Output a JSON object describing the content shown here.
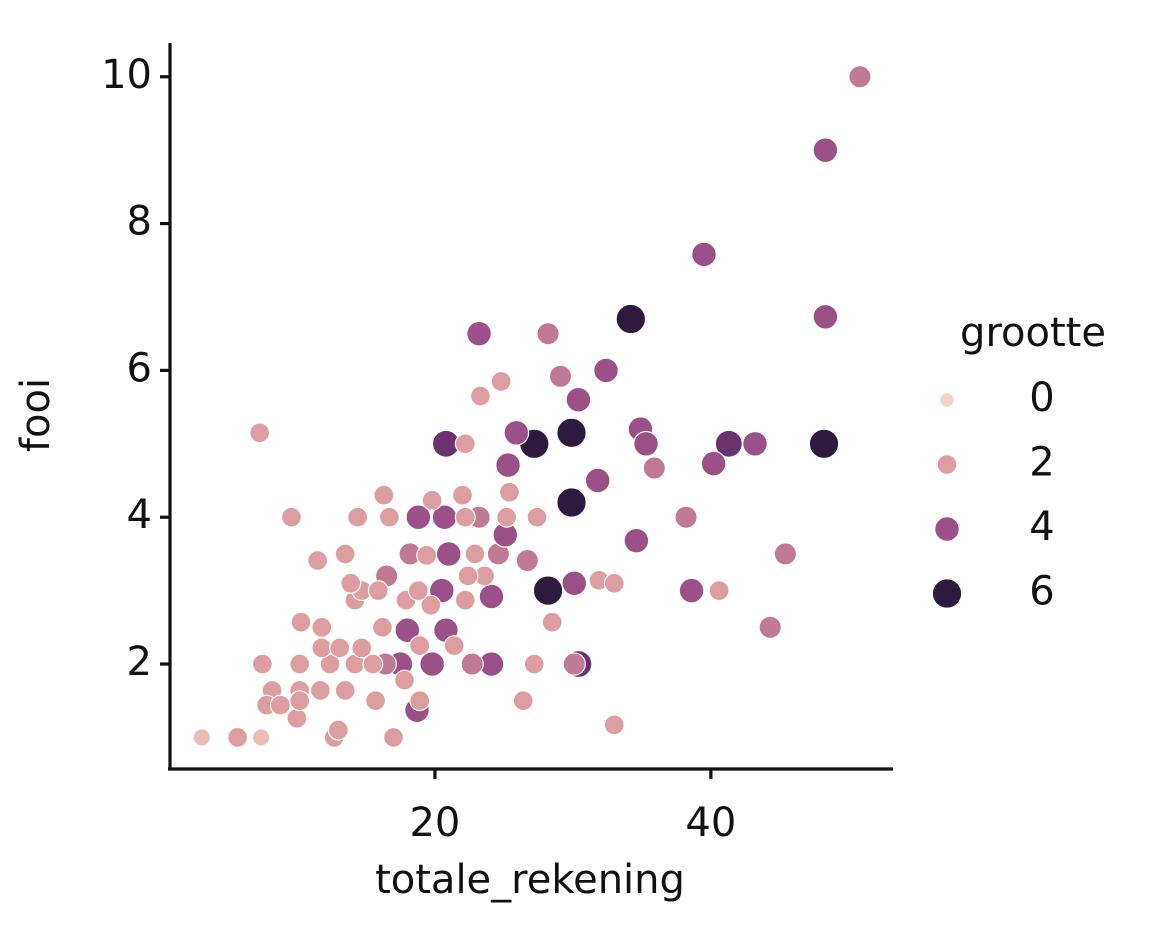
{
  "chart_data": {
    "type": "scatter",
    "x_label": "totale_rekening",
    "y_label": "fooi",
    "xlim": [
      0.8,
      53.2
    ],
    "ylim": [
      0.57,
      10.46
    ],
    "xticks": [
      20,
      40
    ],
    "yticks": [
      2,
      4,
      6,
      8,
      10
    ],
    "grid": false,
    "legend": {
      "title": "grootte",
      "entries": [
        0,
        2,
        4,
        6
      ],
      "position": "right"
    },
    "palette": [
      "#f2d5cb",
      "#ebbdb5",
      "#dc9ea0",
      "#c07a96",
      "#9b5087",
      "#6c3270",
      "#2e1a3f"
    ],
    "x": [
      50.8,
      48.3,
      39.5,
      34.2,
      48.3,
      23.2,
      28.2,
      32.4,
      29.1,
      24.8,
      23.3,
      30.4,
      7.3,
      20.8,
      22.2,
      27.2,
      29.9,
      25.9,
      34.9,
      35.3,
      41.3,
      43.2,
      48.2,
      40.2,
      35.9,
      25.3,
      31.8,
      29.9,
      25.4,
      38.2,
      9.6,
      34.6,
      45.4,
      28.2,
      30.1,
      38.6,
      40.6,
      44.3,
      33.0,
      26.4,
      30.4,
      30.1,
      3.1,
      5.7,
      7.4,
      17.0,
      12.7,
      18.7,
      24.1,
      19.8,
      17.5,
      24.1,
      20.7,
      18.8,
      23.2,
      21.0,
      18.2,
      24.6,
      20.5,
      25.1,
      26.7,
      20.8,
      18.0,
      16.5,
      16.4,
      22.7,
      27.2,
      10.3,
      11.8,
      14.2,
      13.5,
      16.3,
      14.4,
      16.7,
      19.8,
      22.0,
      7.5,
      10.2,
      12.4,
      14.2,
      15.5,
      8.2,
      10.2,
      11.7,
      13.5,
      15.7,
      17.8,
      7.8,
      10.0,
      13.0,
      11.8,
      13.1,
      14.7,
      16.2,
      17.9,
      19.7,
      22.2,
      23.6,
      14.7,
      15.9,
      18.8,
      22.4,
      13.9,
      11.5,
      19.4,
      22.9,
      22.2,
      25.2,
      27.4,
      28.5,
      31.9,
      33.0,
      18.9,
      21.4,
      10.2,
      18.9,
      8.8
    ],
    "y": [
      10.0,
      9.0,
      7.58,
      6.7,
      6.73,
      6.5,
      6.5,
      6.0,
      5.92,
      5.85,
      5.65,
      5.6,
      5.15,
      5.0,
      5.0,
      5.0,
      5.15,
      5.15,
      5.2,
      5.0,
      5.0,
      5.0,
      5.0,
      4.73,
      4.67,
      4.71,
      4.5,
      4.2,
      4.34,
      4.0,
      4.0,
      3.68,
      3.5,
      3.0,
      3.1,
      3.0,
      3.0,
      2.5,
      1.17,
      1.5,
      2.0,
      2.0,
      1.0,
      1.0,
      1.0,
      1.0,
      1.0,
      1.37,
      2.0,
      2.0,
      2.0,
      2.92,
      4.0,
      4.0,
      4.0,
      3.5,
      3.5,
      3.5,
      3.0,
      3.76,
      3.41,
      2.46,
      2.46,
      3.2,
      2.0,
      2.0,
      2.0,
      2.57,
      2.5,
      2.87,
      3.5,
      4.3,
      4.0,
      4.0,
      4.23,
      4.3,
      2.0,
      2.0,
      2.0,
      2.0,
      2.0,
      1.64,
      1.64,
      1.64,
      1.64,
      1.5,
      1.78,
      1.44,
      1.26,
      1.1,
      2.22,
      2.22,
      2.22,
      2.5,
      2.87,
      2.8,
      2.87,
      3.2,
      3.0,
      3.0,
      3.0,
      3.2,
      3.1,
      3.41,
      3.48,
      3.5,
      4.0,
      4.0,
      4.0,
      2.57,
      3.14,
      3.1,
      2.25,
      2.25,
      1.5,
      1.5,
      1.44
    ],
    "sizes": [
      3,
      4,
      4,
      6,
      4,
      4,
      3,
      4,
      3,
      2,
      2,
      4,
      2,
      5,
      2,
      6,
      6,
      4,
      4,
      4,
      5,
      4,
      6,
      4,
      3,
      4,
      4,
      6,
      2,
      3,
      2,
      4,
      3,
      6,
      4,
      4,
      2,
      3,
      2,
      2,
      5,
      3,
      1,
      2,
      1,
      2,
      2,
      4,
      4,
      4,
      4,
      4,
      4,
      4,
      3,
      4,
      3,
      3,
      4,
      4,
      3,
      4,
      4,
      3,
      3,
      3,
      2,
      2,
      2,
      2,
      2,
      2,
      2,
      2,
      2,
      2,
      2,
      2,
      2,
      2,
      2,
      2,
      2,
      2,
      2,
      2,
      2,
      2,
      2,
      2,
      2,
      2,
      2,
      2,
      2,
      2,
      2,
      2,
      2,
      2,
      2,
      2,
      2,
      2,
      2,
      2,
      2,
      2,
      2,
      2,
      2,
      2,
      2,
      2,
      2,
      2,
      2
    ]
  }
}
